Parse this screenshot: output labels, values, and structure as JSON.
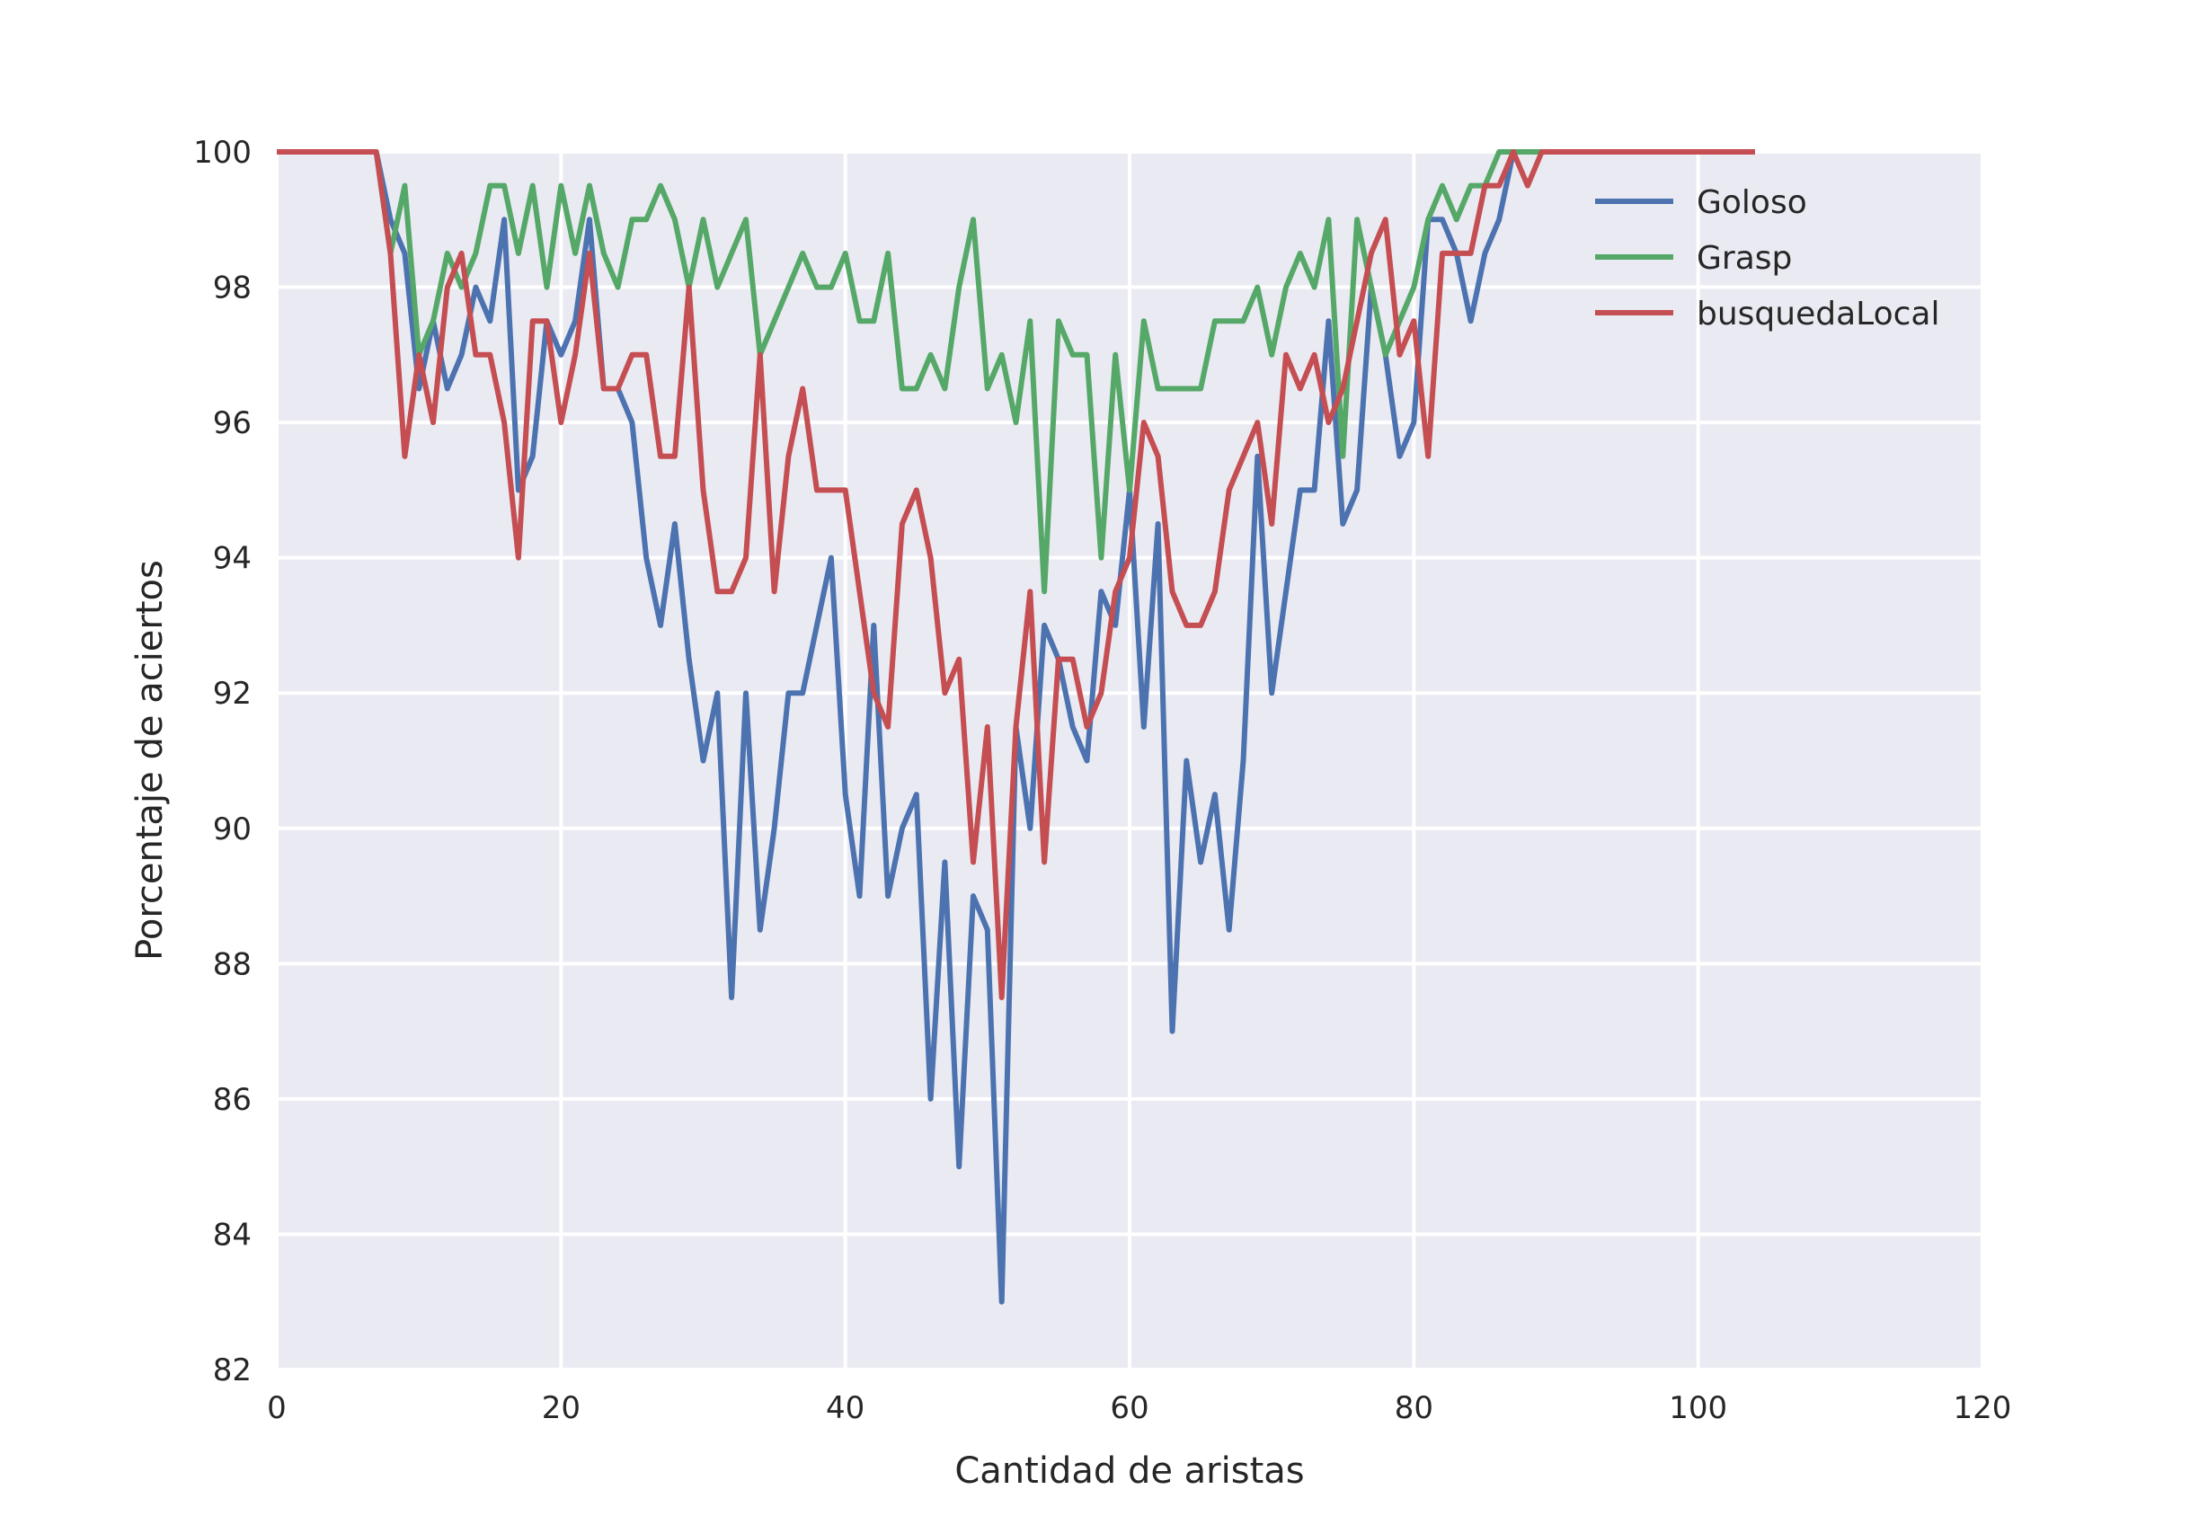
{
  "chart_data": {
    "type": "line",
    "title": "",
    "xlabel": "Cantidad de aristas",
    "ylabel": "Porcentaje de aciertos",
    "xlim": [
      0,
      120
    ],
    "ylim": [
      82,
      100
    ],
    "xticks": [
      0,
      20,
      40,
      60,
      80,
      100,
      120
    ],
    "yticks": [
      82,
      84,
      86,
      88,
      90,
      92,
      94,
      96,
      98,
      100
    ],
    "grid": true,
    "legend_position": "top-right",
    "x": [
      0,
      1,
      2,
      3,
      4,
      5,
      6,
      7,
      8,
      9,
      10,
      11,
      12,
      13,
      14,
      15,
      16,
      17,
      18,
      19,
      20,
      21,
      22,
      23,
      24,
      25,
      26,
      27,
      28,
      29,
      30,
      31,
      32,
      33,
      34,
      35,
      36,
      37,
      38,
      39,
      40,
      41,
      42,
      43,
      44,
      45,
      46,
      47,
      48,
      49,
      50,
      51,
      52,
      53,
      54,
      55,
      56,
      57,
      58,
      59,
      60,
      61,
      62,
      63,
      64,
      65,
      66,
      67,
      68,
      69,
      70,
      71,
      72,
      73,
      74,
      75,
      76,
      77,
      78,
      79,
      80,
      81,
      82,
      83,
      84,
      85,
      86,
      87,
      88,
      89,
      90,
      91,
      92,
      93,
      94,
      95,
      96,
      97,
      98,
      99,
      100,
      101,
      102,
      103,
      104
    ],
    "series": [
      {
        "name": "Goloso",
        "color": "#4c72b0",
        "values": [
          100,
          100,
          100,
          100,
          100,
          100,
          100,
          100,
          99,
          98.5,
          96.5,
          97.5,
          96.5,
          97,
          98,
          97.5,
          99,
          95,
          95.5,
          97.5,
          97,
          97.5,
          99,
          96.5,
          96.5,
          96,
          94,
          93,
          94.5,
          92.5,
          91,
          92,
          87.5,
          92,
          88.5,
          90,
          92,
          92,
          93,
          94,
          90.5,
          89,
          93,
          89,
          90,
          90.5,
          86,
          89.5,
          85,
          89,
          88.5,
          83,
          91.5,
          90,
          93,
          92.5,
          91.5,
          91,
          93.5,
          93,
          95,
          91.5,
          94.5,
          87,
          91,
          89.5,
          90.5,
          88.5,
          91,
          95.5,
          92,
          93.5,
          95,
          95,
          97.5,
          94.5,
          95,
          98,
          97,
          95.5,
          96,
          99,
          99,
          98.5,
          97.5,
          98.5,
          99,
          100,
          100,
          100,
          100,
          100,
          100,
          100,
          100,
          100,
          100,
          100,
          100,
          100,
          100,
          100,
          100,
          100,
          100
        ]
      },
      {
        "name": "Grasp",
        "color": "#55a868",
        "values": [
          100,
          100,
          100,
          100,
          100,
          100,
          100,
          100,
          98.5,
          99.5,
          97,
          97.5,
          98.5,
          98,
          98.5,
          99.5,
          99.5,
          98.5,
          99.5,
          98,
          99.5,
          98.5,
          99.5,
          98.5,
          98,
          99,
          99,
          99.5,
          99,
          98,
          99,
          98,
          98.5,
          99,
          97,
          97.5,
          98,
          98.5,
          98,
          98,
          98.5,
          97.5,
          97.5,
          98.5,
          96.5,
          96.5,
          97,
          96.5,
          98,
          99,
          96.5,
          97,
          96,
          97.5,
          93.5,
          97.5,
          97,
          97,
          94,
          97,
          95,
          97.5,
          96.5,
          96.5,
          96.5,
          96.5,
          97.5,
          97.5,
          97.5,
          98,
          97,
          98,
          98.5,
          98,
          99,
          95.5,
          99,
          98,
          97,
          97.5,
          98,
          99,
          99.5,
          99,
          99.5,
          99.5,
          100,
          100,
          100,
          100,
          100,
          100,
          100,
          100,
          100,
          100,
          100,
          100,
          100,
          100,
          100,
          100,
          100,
          100,
          100
        ]
      },
      {
        "name": "busquedaLocal",
        "color": "#c44e52",
        "values": [
          100,
          100,
          100,
          100,
          100,
          100,
          100,
          100,
          98.5,
          95.5,
          97,
          96,
          98,
          98.5,
          97,
          97,
          96,
          94,
          97.5,
          97.5,
          96,
          97,
          98.5,
          96.5,
          96.5,
          97,
          97,
          95.5,
          95.5,
          98,
          95,
          93.5,
          93.5,
          94,
          97,
          93.5,
          95.5,
          96.5,
          95,
          95,
          95,
          93.5,
          92,
          91.5,
          94.5,
          95,
          94,
          92,
          92.5,
          89.5,
          91.5,
          87.5,
          91.5,
          93.5,
          89.5,
          92.5,
          92.5,
          91.5,
          92,
          93.5,
          94,
          96,
          95.5,
          93.5,
          93,
          93,
          93.5,
          95,
          95.5,
          96,
          94.5,
          97,
          96.5,
          97,
          96,
          96.5,
          97.5,
          98.5,
          99,
          97,
          97.5,
          95.5,
          98.5,
          98.5,
          98.5,
          99.5,
          99.5,
          100,
          99.5,
          100,
          100,
          100,
          100,
          100,
          100,
          100,
          100,
          100,
          100,
          100,
          100,
          100,
          100,
          100,
          100
        ]
      }
    ]
  }
}
